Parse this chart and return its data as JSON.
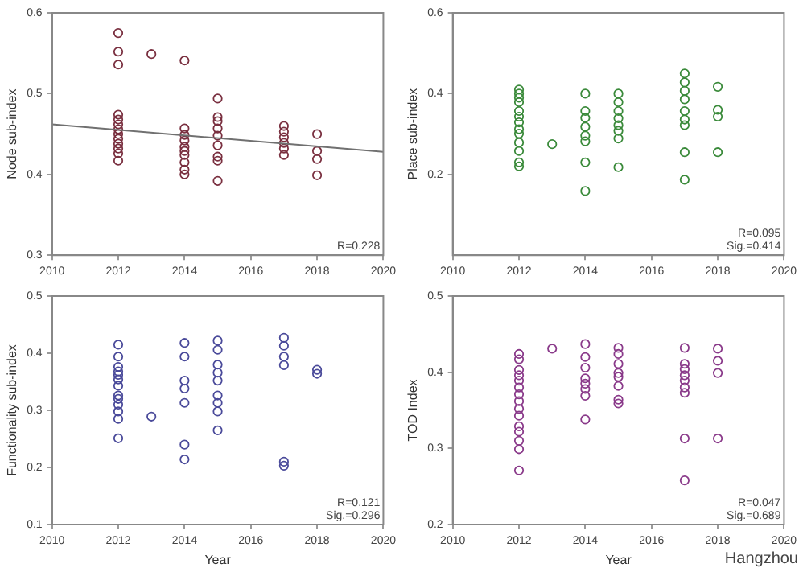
{
  "chart_data": [
    {
      "type": "scatter",
      "ylabel": "Node sub-index",
      "xlim": [
        2010,
        2020
      ],
      "xticks": [
        2010,
        2012,
        2014,
        2016,
        2018,
        2020
      ],
      "ylim": [
        0.3,
        0.6
      ],
      "yticks": [
        0.3,
        0.4,
        0.5,
        0.6
      ],
      "marker": "circle",
      "grid": false,
      "legend": false,
      "annotations": [
        "R=0.228"
      ],
      "series": [
        {
          "color": "#7a3040",
          "x": [
            2012,
            2012,
            2012,
            2012,
            2012,
            2012,
            2012,
            2012,
            2012,
            2012,
            2012,
            2012,
            2012,
            2013,
            2014,
            2014,
            2014,
            2014,
            2014,
            2014,
            2014,
            2014,
            2014,
            2014,
            2015,
            2015,
            2015,
            2015,
            2015,
            2015,
            2015,
            2015,
            2015,
            2017,
            2017,
            2017,
            2017,
            2017,
            2017,
            2018,
            2018,
            2018,
            2018
          ],
          "values": [
            0.575,
            0.552,
            0.536,
            0.474,
            0.468,
            0.462,
            0.456,
            0.45,
            0.444,
            0.438,
            0.432,
            0.426,
            0.417,
            0.549,
            0.541,
            0.457,
            0.449,
            0.442,
            0.434,
            0.429,
            0.424,
            0.415,
            0.406,
            0.4,
            0.494,
            0.471,
            0.466,
            0.457,
            0.448,
            0.436,
            0.422,
            0.417,
            0.392,
            0.46,
            0.453,
            0.446,
            0.439,
            0.432,
            0.424,
            0.45,
            0.429,
            0.419,
            0.399
          ]
        },
        {
          "type": "line",
          "color": "#707070",
          "marker": "none",
          "x": [
            2010,
            2020
          ],
          "values": [
            0.462,
            0.428
          ]
        }
      ]
    },
    {
      "type": "scatter",
      "ylabel": "Place sub-index",
      "xlim": [
        2010,
        2020
      ],
      "xticks": [
        2010,
        2012,
        2014,
        2016,
        2018,
        2020
      ],
      "ylim": [
        0,
        0.6
      ],
      "yticks": [
        0.2,
        0.4,
        0.6
      ],
      "marker": "circle",
      "grid": false,
      "legend": false,
      "annotations": [
        "R=0.095\nSig.=0.414"
      ],
      "series": [
        {
          "color": "#3a8a3a",
          "x": [
            2012,
            2012,
            2012,
            2012,
            2012,
            2012,
            2012,
            2012,
            2012,
            2012,
            2012,
            2012,
            2012,
            2013,
            2014,
            2014,
            2014,
            2014,
            2014,
            2014,
            2014,
            2014,
            2015,
            2015,
            2015,
            2015,
            2015,
            2015,
            2015,
            2015,
            2017,
            2017,
            2017,
            2017,
            2017,
            2017,
            2017,
            2017,
            2017,
            2018,
            2018,
            2018,
            2018
          ],
          "values": [
            0.41,
            0.4,
            0.39,
            0.379,
            0.357,
            0.343,
            0.329,
            0.312,
            0.301,
            0.279,
            0.258,
            0.23,
            0.22,
            0.275,
            0.4,
            0.357,
            0.34,
            0.318,
            0.296,
            0.282,
            0.23,
            0.159,
            0.4,
            0.379,
            0.357,
            0.339,
            0.322,
            0.308,
            0.289,
            0.218,
            0.45,
            0.428,
            0.407,
            0.386,
            0.357,
            0.336,
            0.322,
            0.255,
            0.187,
            0.417,
            0.36,
            0.343,
            0.255
          ]
        }
      ]
    },
    {
      "type": "scatter",
      "xlabel": "Year",
      "ylabel": "Functionality sub-index",
      "xlim": [
        2010,
        2020
      ],
      "xticks": [
        2010,
        2012,
        2014,
        2016,
        2018,
        2020
      ],
      "ylim": [
        0.1,
        0.5
      ],
      "yticks": [
        0.1,
        0.2,
        0.3,
        0.4,
        0.5
      ],
      "marker": "circle",
      "grid": false,
      "legend": false,
      "annotations": [
        "R=0.121\nSig.=0.296"
      ],
      "series": [
        {
          "color": "#4a4a9a",
          "x": [
            2012,
            2012,
            2012,
            2012,
            2012,
            2012,
            2012,
            2012,
            2012,
            2012,
            2012,
            2012,
            2012,
            2013,
            2014,
            2014,
            2014,
            2014,
            2014,
            2014,
            2014,
            2015,
            2015,
            2015,
            2015,
            2015,
            2015,
            2015,
            2015,
            2015,
            2017,
            2017,
            2017,
            2017,
            2017,
            2017,
            2018,
            2018
          ],
          "values": [
            0.415,
            0.394,
            0.376,
            0.368,
            0.362,
            0.354,
            0.343,
            0.326,
            0.32,
            0.31,
            0.298,
            0.285,
            0.251,
            0.289,
            0.418,
            0.394,
            0.352,
            0.338,
            0.313,
            0.24,
            0.214,
            0.422,
            0.406,
            0.38,
            0.366,
            0.352,
            0.326,
            0.313,
            0.298,
            0.265,
            0.427,
            0.413,
            0.394,
            0.379,
            0.21,
            0.203,
            0.371,
            0.364
          ]
        }
      ]
    },
    {
      "type": "scatter",
      "xlabel": "Year",
      "ylabel": "TOD Index",
      "xlim": [
        2010,
        2020
      ],
      "xticks": [
        2010,
        2012,
        2014,
        2016,
        2018,
        2020
      ],
      "ylim": [
        0.2,
        0.5
      ],
      "yticks": [
        0.2,
        0.3,
        0.4,
        0.5
      ],
      "marker": "circle",
      "grid": false,
      "legend": false,
      "annotations": [
        "R=0.047\nSig.=0.689",
        "Hangzhou"
      ],
      "series": [
        {
          "color": "#8a3a8a",
          "x": [
            2012,
            2012,
            2012,
            2012,
            2012,
            2012,
            2012,
            2012,
            2012,
            2012,
            2012,
            2012,
            2012,
            2012,
            2012,
            2013,
            2014,
            2014,
            2014,
            2014,
            2014,
            2014,
            2014,
            2014,
            2015,
            2015,
            2015,
            2015,
            2015,
            2015,
            2015,
            2015,
            2017,
            2017,
            2017,
            2017,
            2017,
            2017,
            2017,
            2017,
            2017,
            2018,
            2018,
            2018,
            2018
          ],
          "values": [
            0.424,
            0.417,
            0.403,
            0.396,
            0.389,
            0.38,
            0.371,
            0.362,
            0.352,
            0.343,
            0.329,
            0.322,
            0.31,
            0.299,
            0.271,
            0.431,
            0.437,
            0.42,
            0.406,
            0.392,
            0.385,
            0.378,
            0.369,
            0.338,
            0.432,
            0.424,
            0.411,
            0.399,
            0.394,
            0.382,
            0.364,
            0.359,
            0.432,
            0.411,
            0.404,
            0.396,
            0.389,
            0.38,
            0.373,
            0.313,
            0.258,
            0.431,
            0.415,
            0.399,
            0.313
          ]
        }
      ]
    }
  ]
}
